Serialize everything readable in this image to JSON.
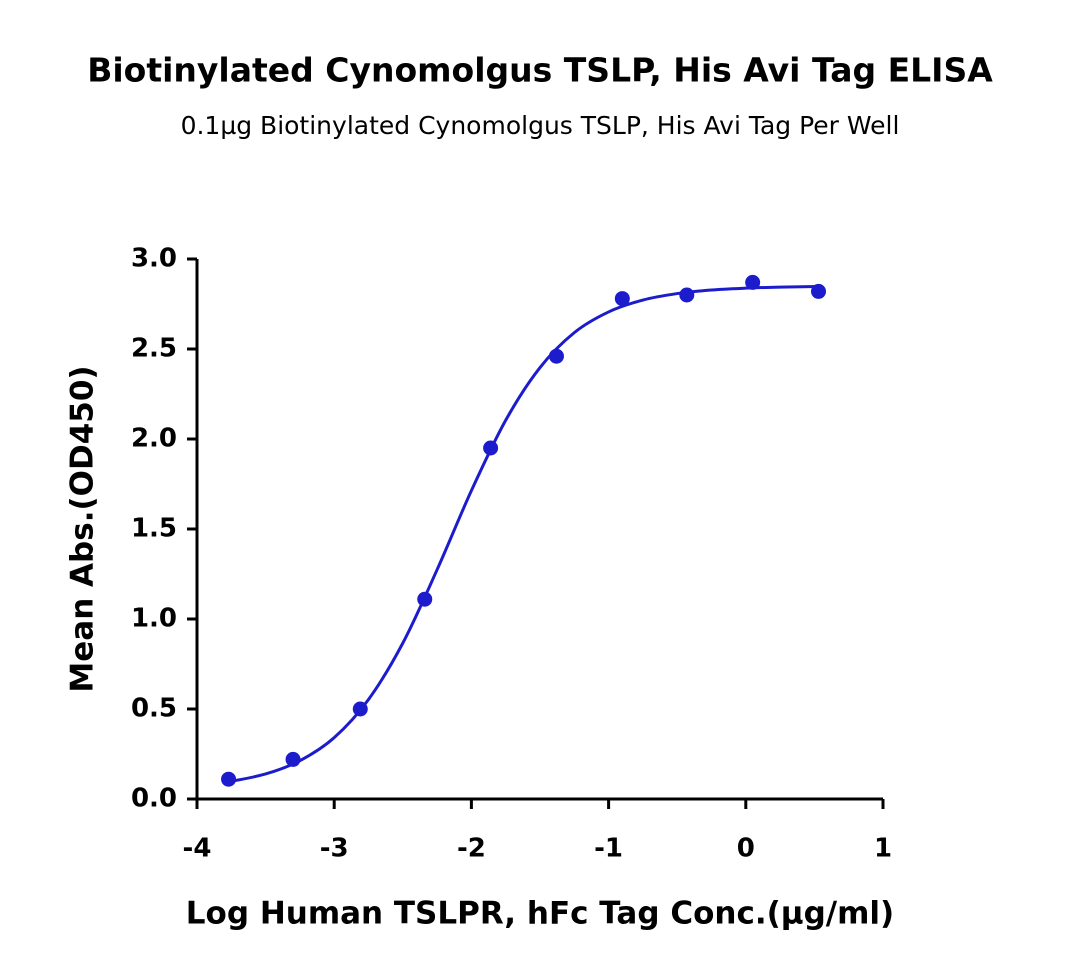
{
  "chart_data": {
    "type": "scatter",
    "title": "Biotinylated Cynomolgus TSLP, His Avi Tag ELISA",
    "subtitle": "0.1µg Biotinylated Cynomolgus TSLP, His Avi Tag Per Well",
    "x_label": "Log Human TSLPR, hFc Tag Conc.(µg/ml)",
    "y_label": "Mean Abs.(OD450)",
    "xlim": [
      -4,
      1
    ],
    "ylim": [
      0,
      3
    ],
    "xticks": [
      -4,
      -3,
      -2,
      -1,
      0,
      1
    ],
    "yticks": [
      {
        "value": 0,
        "label": "0.0"
      },
      0.5,
      {
        "value": 1,
        "label": "1.0"
      },
      1.5,
      {
        "value": 2,
        "label": "2.0"
      },
      2.5,
      {
        "value": 3,
        "label": "3.0"
      }
    ],
    "grid": false,
    "series": [
      {
        "type": "scatter",
        "color": "#1c1ccc",
        "x": [
          -3.77,
          -3.3,
          -2.81,
          -2.34,
          -1.86,
          -1.38,
          -0.9,
          -0.43,
          0.05,
          0.53
        ],
        "values": [
          0.11,
          0.22,
          0.5,
          1.11,
          1.95,
          2.46,
          2.78,
          2.8,
          2.87,
          2.82
        ]
      },
      {
        "type": "line",
        "color": "#1c1ccc",
        "x": [
          -3.78,
          -3.5,
          -3.25,
          -3.0,
          -2.75,
          -2.5,
          -2.25,
          -2.0,
          -1.75,
          -1.5,
          -1.25,
          -1.0,
          -0.75,
          -0.5,
          -0.25,
          0,
          0.25,
          0.52
        ],
        "values": [
          0.094,
          0.139,
          0.213,
          0.341,
          0.553,
          0.866,
          1.274,
          1.713,
          2.104,
          2.397,
          2.591,
          2.706,
          2.772,
          2.808,
          2.828,
          2.838,
          2.844,
          2.847
        ]
      }
    ]
  }
}
